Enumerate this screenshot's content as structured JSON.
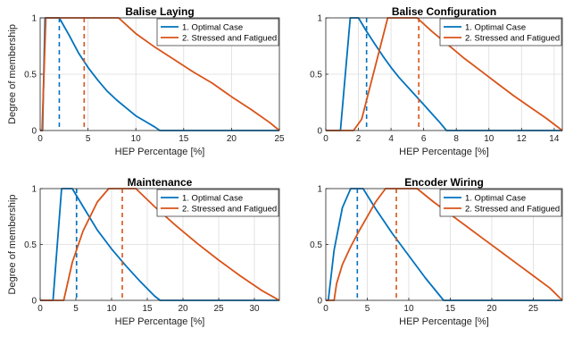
{
  "chart_data": [
    {
      "type": "line",
      "title": "Balise Laying",
      "xlabel": "HEP Percentage [%]",
      "ylabel": "Degree of membership",
      "xlim": [
        0,
        25
      ],
      "ylim": [
        0,
        1
      ],
      "xticks": [
        0,
        5,
        10,
        15,
        20,
        25
      ],
      "xtick_labels": [
        "0",
        "5",
        "10",
        "15",
        "20",
        "25"
      ],
      "yticks": [
        0,
        0.5,
        1
      ],
      "ytick_labels": [
        "0",
        "0.5",
        "1"
      ],
      "grid": true,
      "legend_position": "top-right",
      "series": [
        {
          "name": "1. Optimal Case",
          "color": "#0072BD",
          "x": [
            0,
            0.25,
            0.5,
            1.0,
            2.0,
            3.0,
            4.0,
            5.0,
            6.0,
            7.0,
            8.0,
            9.0,
            10.0,
            11.0,
            12.0,
            12.5,
            25
          ],
          "y": [
            0,
            0,
            1,
            1,
            1,
            0.85,
            0.69,
            0.56,
            0.45,
            0.35,
            0.27,
            0.2,
            0.13,
            0.08,
            0.03,
            0,
            0
          ],
          "defuzzified": 2.0
        },
        {
          "name": "2. Stressed and Fatigued",
          "color": "#D95319",
          "x": [
            0,
            0.2,
            0.6,
            1.0,
            8.2,
            10.0,
            12.0,
            14.0,
            16.0,
            18.0,
            20.0,
            22.0,
            24.0,
            25.0
          ],
          "y": [
            0,
            0,
            1,
            1,
            1,
            0.86,
            0.74,
            0.63,
            0.52,
            0.42,
            0.3,
            0.19,
            0.07,
            0
          ],
          "defuzzified": 4.6
        }
      ]
    },
    {
      "type": "line",
      "title": "Balise Configuration",
      "xlabel": "HEP Percentage [%]",
      "ylabel": "",
      "xlim": [
        0,
        14.5
      ],
      "ylim": [
        0,
        1
      ],
      "xticks": [
        0,
        2,
        4,
        6,
        8,
        10,
        12,
        14
      ],
      "xtick_labels": [
        "0",
        "2",
        "4",
        "6",
        "8",
        "10",
        "12",
        "14"
      ],
      "yticks": [
        0,
        0.5,
        1
      ],
      "ytick_labels": [
        "0",
        "0.5",
        "1"
      ],
      "grid": true,
      "legend_position": "top-right",
      "series": [
        {
          "name": "1. Optimal Case",
          "color": "#0072BD",
          "x": [
            0,
            0.9,
            1.5,
            2.0,
            2.5,
            3.0,
            3.5,
            4.0,
            4.5,
            5.0,
            5.5,
            6.0,
            6.5,
            7.0,
            7.4,
            14.5
          ],
          "y": [
            0,
            0,
            1,
            1,
            0.88,
            0.77,
            0.66,
            0.56,
            0.47,
            0.39,
            0.31,
            0.23,
            0.15,
            0.07,
            0,
            0
          ],
          "defuzzified": 2.5
        },
        {
          "name": "2. Stressed and Fatigued",
          "color": "#D95319",
          "x": [
            0,
            1.7,
            2.2,
            3.8,
            5.6,
            6.5,
            7.5,
            8.5,
            9.5,
            10.5,
            11.5,
            12.5,
            13.5,
            14.5
          ],
          "y": [
            0,
            0,
            0.1,
            1,
            1,
            0.88,
            0.76,
            0.64,
            0.53,
            0.42,
            0.31,
            0.21,
            0.11,
            0
          ],
          "defuzzified": 5.7
        }
      ]
    },
    {
      "type": "line",
      "title": "Maintenance",
      "xlabel": "HEP Percentage [%]",
      "ylabel": "Degree of membership",
      "xlim": [
        0,
        33.5
      ],
      "ylim": [
        0,
        1
      ],
      "xticks": [
        0,
        5,
        10,
        15,
        20,
        25,
        30
      ],
      "xtick_labels": [
        "0",
        "5",
        "10",
        "15",
        "20",
        "25",
        "30"
      ],
      "yticks": [
        0,
        0.5,
        1
      ],
      "ytick_labels": [
        "0",
        "0.5",
        "1"
      ],
      "grid": true,
      "legend_position": "top-right",
      "series": [
        {
          "name": "1. Optimal Case",
          "color": "#0072BD",
          "x": [
            0,
            1.8,
            3.0,
            4.5,
            6.0,
            8.0,
            10.0,
            12.0,
            14.0,
            16.0,
            16.8,
            33.5
          ],
          "y": [
            0,
            0,
            1,
            1,
            0.84,
            0.63,
            0.46,
            0.31,
            0.17,
            0.04,
            0,
            0
          ],
          "defuzzified": 5.1
        },
        {
          "name": "2. Stressed and Fatigued",
          "color": "#D95319",
          "x": [
            0,
            3.3,
            4.5,
            6.0,
            8.0,
            9.6,
            13.4,
            16.0,
            19.0,
            22.0,
            25.0,
            28.0,
            31.0,
            33.5
          ],
          "y": [
            0,
            0,
            0.34,
            0.62,
            0.88,
            1,
            1,
            0.84,
            0.67,
            0.51,
            0.36,
            0.22,
            0.09,
            0
          ],
          "defuzzified": 11.5
        }
      ]
    },
    {
      "type": "line",
      "title": "Encoder Wiring",
      "xlabel": "HEP Percentage [%]",
      "ylabel": "",
      "xlim": [
        0,
        28.5
      ],
      "ylim": [
        0,
        1
      ],
      "xticks": [
        0,
        5,
        10,
        15,
        20,
        25
      ],
      "xtick_labels": [
        "0",
        "5",
        "10",
        "15",
        "20",
        "25"
      ],
      "yticks": [
        0,
        0.5,
        1
      ],
      "ytick_labels": [
        "0",
        "0.5",
        "1"
      ],
      "grid": true,
      "legend_position": "top-right",
      "series": [
        {
          "name": "1. Optimal Case",
          "color": "#0072BD",
          "x": [
            0,
            0.3,
            1.0,
            2.0,
            3.0,
            4.5,
            6.0,
            8.0,
            10.0,
            12.0,
            14.2,
            28.5
          ],
          "y": [
            0,
            0,
            0.45,
            0.83,
            1,
            1,
            0.82,
            0.6,
            0.4,
            0.2,
            0,
            0
          ],
          "defuzzified": 3.8
        },
        {
          "name": "2. Stressed and Fatigued",
          "color": "#D95319",
          "x": [
            0,
            1.0,
            1.3,
            2.0,
            3.0,
            4.0,
            5.0,
            6.0,
            7.2,
            11.0,
            13.0,
            15.0,
            17.0,
            19.0,
            21.0,
            23.0,
            25.0,
            27.0,
            28.5
          ],
          "y": [
            0,
            0,
            0.15,
            0.32,
            0.48,
            0.62,
            0.75,
            0.88,
            1,
            1,
            0.88,
            0.77,
            0.66,
            0.55,
            0.44,
            0.33,
            0.22,
            0.11,
            0
          ],
          "defuzzified": 8.5
        }
      ]
    }
  ]
}
